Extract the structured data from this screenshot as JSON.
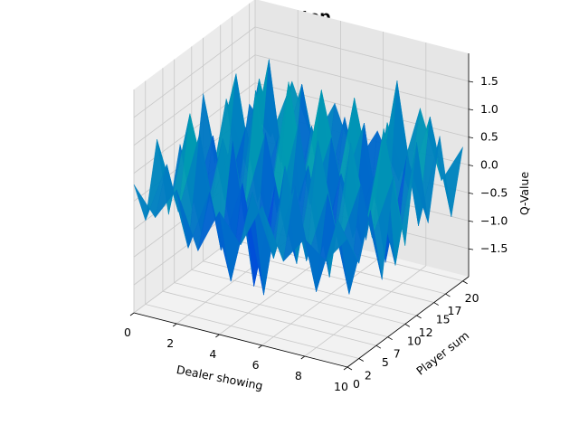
{
  "chart_data": {
    "type": "surface3d",
    "title": "Multistep",
    "xlabel": "Dealer showing",
    "ylabel": "Player sum",
    "zlabel": "Q-Value",
    "xlim": [
      0,
      10
    ],
    "ylim": [
      0,
      21
    ],
    "zlim": [
      -2.0,
      2.0
    ],
    "x_ticks": [
      "0",
      "2",
      "4",
      "6",
      "8",
      "10"
    ],
    "y_ticks": [
      "0",
      "2",
      "5",
      "7",
      "10",
      "12",
      "15",
      "17",
      "20"
    ],
    "z_ticks": [
      "−1.5",
      "−1.0",
      "−0.5",
      "0.0",
      "0.5",
      "1.0",
      "1.5"
    ],
    "colormap": "winter",
    "colormap_colors": [
      "#0000ff",
      "#00ff80"
    ],
    "x": [
      0,
      1,
      2,
      3,
      4,
      5,
      6,
      7,
      8,
      9,
      10
    ],
    "y": [
      0,
      2,
      4,
      6,
      8,
      10,
      12,
      14,
      16,
      18,
      20
    ],
    "z": [
      [
        0.3,
        -0.2,
        0.4,
        -0.6,
        0.2,
        -0.3,
        0.5,
        -0.4,
        0.1,
        -0.2,
        0.3
      ],
      [
        -0.5,
        0.6,
        -0.8,
        0.3,
        -1.2,
        0.5,
        -0.6,
        0.8,
        -1.0,
        0.4,
        -0.3
      ],
      [
        0.8,
        -0.4,
        1.1,
        -0.9,
        0.4,
        -1.5,
        0.9,
        -0.7,
        0.6,
        -1.1,
        0.5
      ],
      [
        -0.7,
        1.2,
        -0.3,
        0.9,
        -1.6,
        0.3,
        -1.0,
        1.3,
        -0.5,
        0.7,
        -0.9
      ],
      [
        0.4,
        -1.1,
        0.7,
        -0.5,
        1.0,
        -0.8,
        0.6,
        -1.3,
        1.2,
        -0.4,
        0.8
      ],
      [
        -0.9,
        0.5,
        -1.4,
        1.5,
        -0.6,
        1.1,
        -1.2,
        0.4,
        -0.8,
        1.4,
        -0.6
      ],
      [
        1.0,
        -0.8,
        0.6,
        -1.0,
        1.6,
        -0.5,
        0.8,
        -0.9,
        0.3,
        -1.2,
        1.1
      ],
      [
        -0.4,
        1.3,
        -0.9,
        0.4,
        -0.7,
        1.4,
        -0.3,
        1.0,
        -1.4,
        0.6,
        -0.5
      ],
      [
        0.6,
        -0.6,
        1.5,
        -1.3,
        0.5,
        -0.9,
        1.2,
        -0.6,
        1.7,
        -0.8,
        0.9
      ],
      [
        -1.1,
        0.9,
        -0.5,
        1.0,
        -1.1,
        0.6,
        -1.5,
        0.7,
        -0.4,
        1.0,
        -0.7
      ],
      [
        0.2,
        -0.3,
        0.8,
        -0.2,
        0.6,
        -0.4,
        0.3,
        -0.5,
        0.9,
        -0.3,
        0.4
      ]
    ]
  }
}
